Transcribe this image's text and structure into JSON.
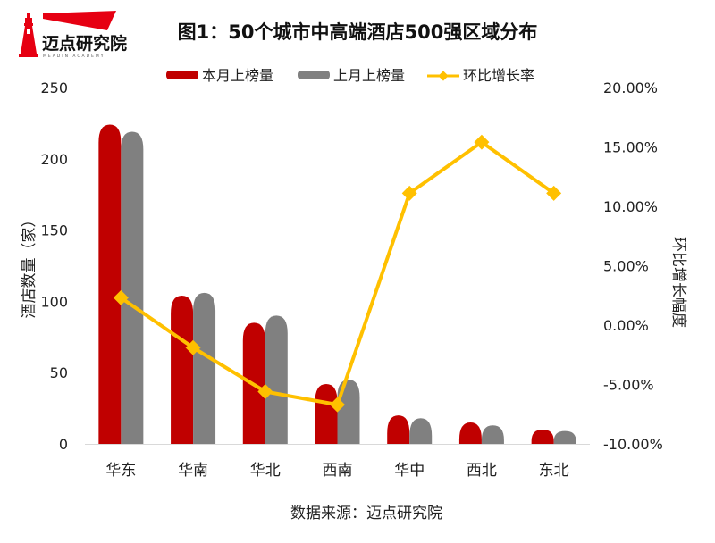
{
  "logo": {
    "text": "迈点研究院",
    "subtext": "MEADIN ACADEMY",
    "color": "#e60012"
  },
  "chart_data": {
    "type": "bar",
    "title": "图1：50个城市中高端酒店500强区域分布",
    "categories": [
      "华东",
      "华南",
      "华北",
      "西南",
      "华中",
      "西北",
      "东北"
    ],
    "series": [
      {
        "name": "本月上榜量",
        "kind": "bar",
        "axis": "left",
        "color": "#c00000",
        "values": [
          224,
          104,
          85,
          42,
          20,
          15,
          10
        ]
      },
      {
        "name": "上月上榜量",
        "kind": "bar",
        "axis": "left",
        "color": "#808080",
        "values": [
          219,
          106,
          90,
          45,
          18,
          13,
          9
        ]
      },
      {
        "name": "环比增长率",
        "kind": "line",
        "axis": "right",
        "color": "#ffc000",
        "unit": "%",
        "values": [
          2.3,
          -1.9,
          -5.6,
          -6.7,
          11.1,
          15.4,
          11.1
        ]
      }
    ],
    "ylabel": "酒店数量（家）",
    "ylim": [
      0,
      250
    ],
    "yticks": [
      "0",
      "50",
      "100",
      "150",
      "200",
      "250"
    ],
    "y2label": "环比增长幅度",
    "y2lim": [
      -10,
      20
    ],
    "y2ticks": [
      "-10.00%",
      "-5.00%",
      "0.00%",
      "5.00%",
      "10.00%",
      "15.00%",
      "20.00%"
    ],
    "xlabel": "",
    "grid": false,
    "legend_position": "top"
  },
  "source": "数据来源：迈点研究院"
}
